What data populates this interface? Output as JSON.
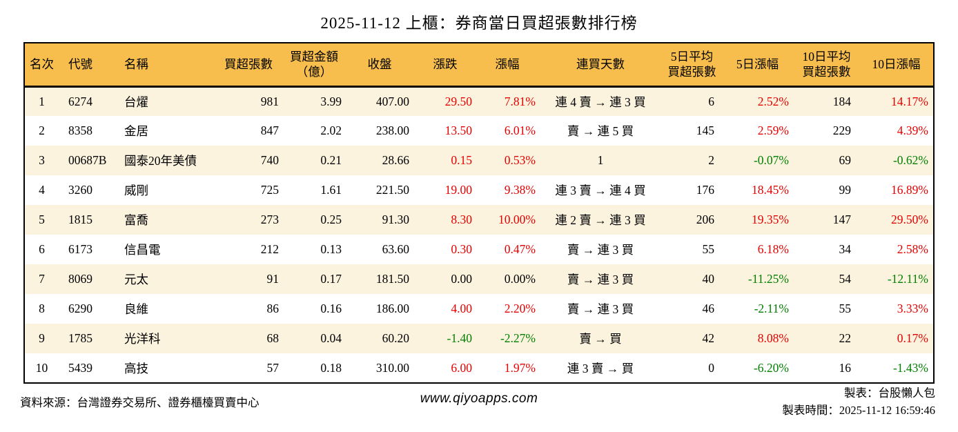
{
  "title": "2025-11-12 上櫃：券商當日買超張數排行榜",
  "colors": {
    "header_bg": "#F7BE4D",
    "row_stripe": "#FCF3DF",
    "up_red": "#E60000",
    "down_green": "#008000",
    "flat_black": "#000000"
  },
  "chart_data": {
    "type": "table",
    "columns": [
      {
        "key": "rank",
        "label": "名次",
        "lines": [
          "名次"
        ]
      },
      {
        "key": "code",
        "label": "代號",
        "lines": [
          "代號"
        ]
      },
      {
        "key": "name",
        "label": "名稱",
        "lines": [
          "名稱"
        ]
      },
      {
        "key": "net_volume",
        "label": "買超張數",
        "lines": [
          "買超張數"
        ]
      },
      {
        "key": "net_amount",
        "label": "買超金額（億）",
        "lines": [
          "買超金額",
          "（億）"
        ]
      },
      {
        "key": "close",
        "label": "收盤",
        "lines": [
          "收盤"
        ]
      },
      {
        "key": "change",
        "label": "漲跌",
        "lines": [
          "漲跌"
        ]
      },
      {
        "key": "change_pct",
        "label": "漲幅",
        "lines": [
          "漲幅"
        ]
      },
      {
        "key": "streak",
        "label": "連買天數",
        "lines": [
          "連買天數"
        ]
      },
      {
        "key": "avg5",
        "label": "5日平均買超張數",
        "lines": [
          "5日平均",
          "買超張數"
        ]
      },
      {
        "key": "pct5",
        "label": "5日漲幅",
        "lines": [
          "5日漲幅"
        ]
      },
      {
        "key": "avg10",
        "label": "10日平均買超張數",
        "lines": [
          "10日平均",
          "買超張數"
        ]
      },
      {
        "key": "pct10",
        "label": "10日漲幅",
        "lines": [
          "10日漲幅"
        ]
      }
    ],
    "color_rule": "change/change_pct/pct5/pct10: positive=red, negative=green, zero=black",
    "rows": [
      {
        "rank": "1",
        "code": "6274",
        "name": "台燿",
        "net_volume": "981",
        "net_amount": "3.99",
        "close": "407.00",
        "change": "29.50",
        "change_pct": "7.81%",
        "streak": "連 4 賣 → 連 3 買",
        "avg5": "6",
        "pct5": "2.52%",
        "avg10": "184",
        "pct10": "14.17%"
      },
      {
        "rank": "2",
        "code": "8358",
        "name": "金居",
        "net_volume": "847",
        "net_amount": "2.02",
        "close": "238.00",
        "change": "13.50",
        "change_pct": "6.01%",
        "streak": "賣 → 連 5 買",
        "avg5": "145",
        "pct5": "2.59%",
        "avg10": "229",
        "pct10": "4.39%"
      },
      {
        "rank": "3",
        "code": "00687B",
        "name": "國泰20年美債",
        "net_volume": "740",
        "net_amount": "0.21",
        "close": "28.66",
        "change": "0.15",
        "change_pct": "0.53%",
        "streak": "1",
        "avg5": "2",
        "pct5": "-0.07%",
        "avg10": "69",
        "pct10": "-0.62%"
      },
      {
        "rank": "4",
        "code": "3260",
        "name": "威剛",
        "net_volume": "725",
        "net_amount": "1.61",
        "close": "221.50",
        "change": "19.00",
        "change_pct": "9.38%",
        "streak": "連 3 賣 → 連 4 買",
        "avg5": "176",
        "pct5": "18.45%",
        "avg10": "99",
        "pct10": "16.89%"
      },
      {
        "rank": "5",
        "code": "1815",
        "name": "富喬",
        "net_volume": "273",
        "net_amount": "0.25",
        "close": "91.30",
        "change": "8.30",
        "change_pct": "10.00%",
        "streak": "連 2 賣 → 連 3 買",
        "avg5": "206",
        "pct5": "19.35%",
        "avg10": "147",
        "pct10": "29.50%"
      },
      {
        "rank": "6",
        "code": "6173",
        "name": "信昌電",
        "net_volume": "212",
        "net_amount": "0.13",
        "close": "63.60",
        "change": "0.30",
        "change_pct": "0.47%",
        "streak": "賣 → 連 3 買",
        "avg5": "55",
        "pct5": "6.18%",
        "avg10": "34",
        "pct10": "2.58%"
      },
      {
        "rank": "7",
        "code": "8069",
        "name": "元太",
        "net_volume": "91",
        "net_amount": "0.17",
        "close": "181.50",
        "change": "0.00",
        "change_pct": "0.00%",
        "streak": "賣 → 連 3 買",
        "avg5": "40",
        "pct5": "-11.25%",
        "avg10": "54",
        "pct10": "-12.11%"
      },
      {
        "rank": "8",
        "code": "6290",
        "name": "良維",
        "net_volume": "86",
        "net_amount": "0.16",
        "close": "186.00",
        "change": "4.00",
        "change_pct": "2.20%",
        "streak": "賣 → 連 3 買",
        "avg5": "46",
        "pct5": "-2.11%",
        "avg10": "55",
        "pct10": "3.33%"
      },
      {
        "rank": "9",
        "code": "1785",
        "name": "光洋科",
        "net_volume": "68",
        "net_amount": "0.04",
        "close": "60.20",
        "change": "-1.40",
        "change_pct": "-2.27%",
        "streak": "賣 → 買",
        "avg5": "42",
        "pct5": "8.08%",
        "avg10": "22",
        "pct10": "0.17%"
      },
      {
        "rank": "10",
        "code": "5439",
        "name": "高技",
        "net_volume": "57",
        "net_amount": "0.18",
        "close": "310.00",
        "change": "6.00",
        "change_pct": "1.97%",
        "streak": "連 3 賣 → 買",
        "avg5": "0",
        "pct5": "-6.20%",
        "avg10": "16",
        "pct10": "-1.43%"
      }
    ]
  },
  "footer": {
    "source": "資料來源：台灣證券交易所、證券櫃檯買賣中心",
    "website": "www.qiyoapps.com",
    "author": "製表：台股懶人包",
    "generated_at": "製表時間：2025-11-12 16:59:46"
  }
}
